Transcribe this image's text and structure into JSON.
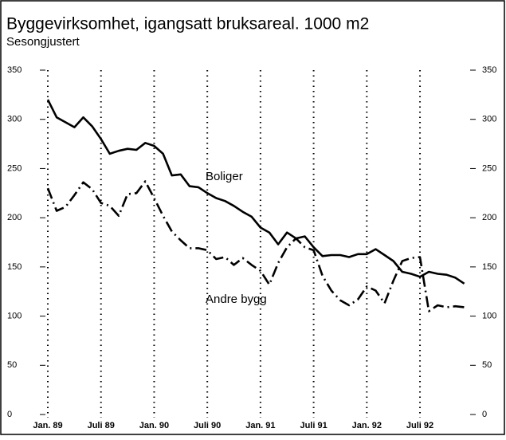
{
  "chart_data": {
    "type": "line",
    "title": "Byggevirksomhet, igangsatt bruksareal. 1000 m2",
    "subtitle": "Sesongjustert",
    "categories": [
      "Jan. 89",
      null,
      null,
      null,
      null,
      null,
      "Juli 89",
      null,
      null,
      null,
      null,
      null,
      "Jan. 90",
      null,
      null,
      null,
      null,
      null,
      "Juli 90",
      null,
      null,
      null,
      null,
      null,
      "Jan. 91",
      null,
      null,
      null,
      null,
      null,
      "Juli 91",
      null,
      null,
      null,
      null,
      null,
      "Jan. 92",
      null,
      null,
      null,
      null,
      null,
      "Juli 92",
      null,
      null,
      null,
      null,
      null
    ],
    "series": [
      {
        "name": "Boliger",
        "color": "#000000",
        "dash": "solid",
        "values": [
          320,
          302,
          297,
          292,
          302,
          293,
          280,
          265,
          268,
          270,
          269,
          276,
          273,
          265,
          243,
          244,
          232,
          231,
          225,
          220,
          217,
          212,
          206,
          201,
          190,
          185,
          173,
          185,
          179,
          181,
          170,
          161,
          162,
          162,
          160,
          163,
          163,
          168,
          162,
          156,
          145,
          143,
          140,
          145,
          143,
          142,
          139,
          133
        ]
      },
      {
        "name": "Andre bygg",
        "color": "#000000",
        "dash": "dashdot",
        "values": [
          230,
          207,
          211,
          223,
          236,
          229,
          215,
          212,
          202,
          224,
          225,
          237,
          220,
          202,
          186,
          177,
          169,
          169,
          167,
          158,
          160,
          152,
          159,
          152,
          146,
          132,
          154,
          170,
          179,
          170,
          167,
          141,
          126,
          116,
          111,
          117,
          130,
          126,
          113,
          136,
          156,
          159,
          160,
          105,
          111,
          109,
          110,
          109
        ]
      }
    ],
    "ylim": [
      0,
      350
    ],
    "yticks": [
      0,
      50,
      100,
      150,
      200,
      250,
      300,
      350
    ],
    "y2lim": [
      0,
      350
    ],
    "y2ticks": [
      0,
      50,
      100,
      150,
      200,
      250,
      300,
      350
    ],
    "grid": "x-dotted"
  }
}
